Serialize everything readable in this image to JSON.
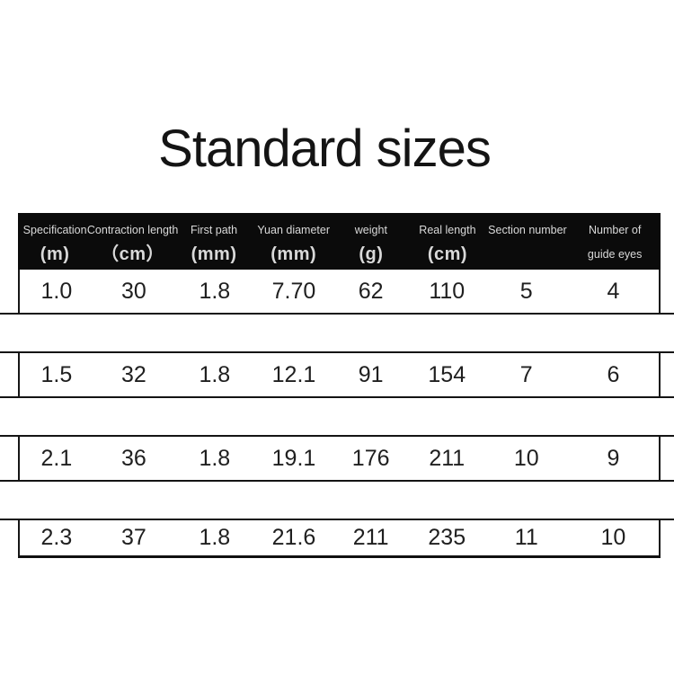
{
  "title": "Standard sizes",
  "colors": {
    "header_background": "#0b0b0b",
    "header_text": "#d9d9d9",
    "border": "#151515",
    "body_text": "#1f1f1f",
    "page_background": "#ffffff"
  },
  "table": {
    "columns": [
      {
        "label": "Specification",
        "unit": "(m)"
      },
      {
        "label": "Contraction length",
        "unit": "（cm）"
      },
      {
        "label": "First path",
        "unit": "(mm)"
      },
      {
        "label": "Yuan diameter",
        "unit": "(mm)"
      },
      {
        "label": "weight",
        "unit": "(g)"
      },
      {
        "label": "Real length",
        "unit": "(cm)"
      },
      {
        "label": "Section number",
        "unit": ""
      },
      {
        "label": "Number of",
        "unit": "guide eyes"
      }
    ],
    "rows": [
      [
        "1.0",
        "30",
        "1.8",
        "7.70",
        "62",
        "110",
        "5",
        "4"
      ],
      [
        "1.5",
        "32",
        "1.8",
        "12.1",
        "91",
        "154",
        "7",
        "6"
      ],
      [
        "2.1",
        "36",
        "1.8",
        "19.1",
        "176",
        "211",
        "10",
        "9"
      ],
      [
        "2.3",
        "37",
        "1.8",
        "21.6",
        "211",
        "235",
        "11",
        "10"
      ]
    ]
  }
}
